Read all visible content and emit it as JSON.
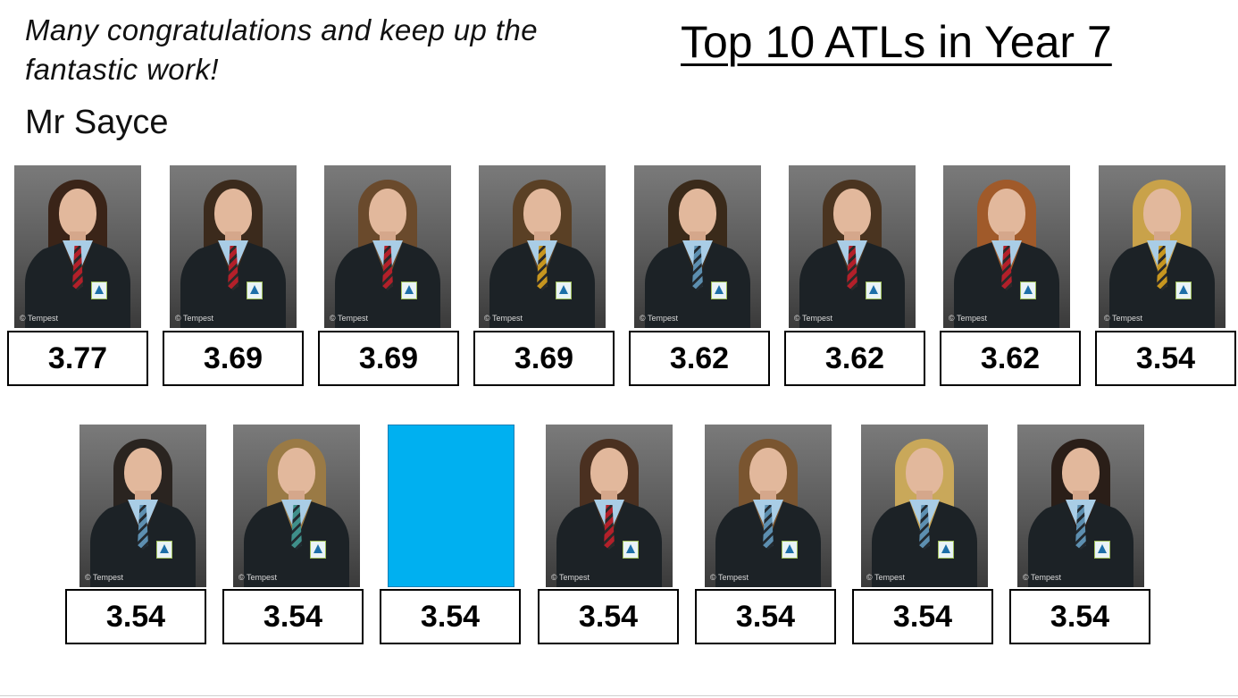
{
  "message": "Many congratulations and keep up the fantastic work!",
  "signature": "Mr Sayce",
  "title": "Top 10 ATLs in Year 7",
  "watermark": "© Tempest",
  "blank_color": "#00b0f0",
  "row1": [
    {
      "score": "3.77",
      "hair": "#3a2418",
      "tie": "red"
    },
    {
      "score": "3.69",
      "hair": "#3b2a1c",
      "tie": "red"
    },
    {
      "score": "3.69",
      "hair": "#6a4a2c",
      "tie": "red"
    },
    {
      "score": "3.69",
      "hair": "#5a4025",
      "tie": "gold"
    },
    {
      "score": "3.62",
      "hair": "#3a2a1a",
      "tie": "blue"
    },
    {
      "score": "3.62",
      "hair": "#4a3420",
      "tie": "red"
    },
    {
      "score": "3.62",
      "hair": "#a05a2a",
      "tie": "red"
    },
    {
      "score": "3.54",
      "hair": "#c9a24a",
      "tie": "gold"
    }
  ],
  "row2": [
    {
      "score": "3.54",
      "hair": "#2a2420",
      "tie": "blue"
    },
    {
      "score": "3.54",
      "hair": "#9a7a45",
      "tie": "green"
    },
    {
      "score": "3.54",
      "blank": true
    },
    {
      "score": "3.54",
      "hair": "#4a3020",
      "tie": "red"
    },
    {
      "score": "3.54",
      "hair": "#7a5530",
      "tie": "blue"
    },
    {
      "score": "3.54",
      "hair": "#c9a85a",
      "tie": "blue"
    },
    {
      "score": "3.54",
      "hair": "#2a1e18",
      "tie": "blue"
    }
  ]
}
